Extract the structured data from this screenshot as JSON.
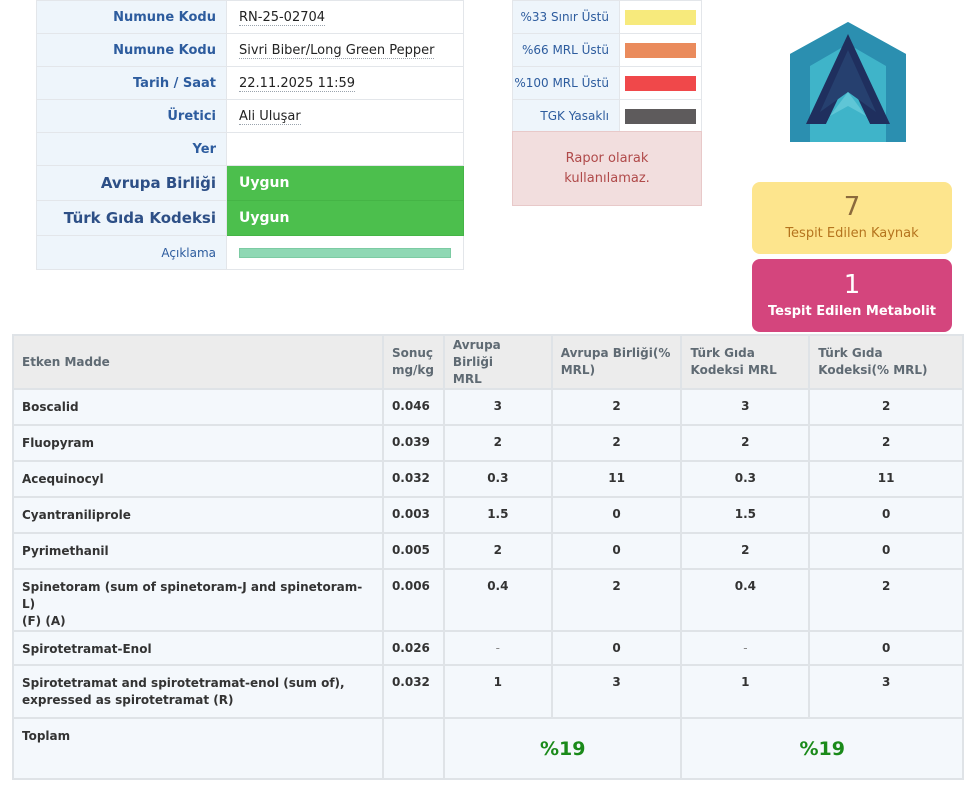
{
  "info": {
    "rows": [
      {
        "label": "Numune Kodu",
        "value": "RN-25-02704"
      },
      {
        "label": "Numune Kodu",
        "value": "Sivri Biber/Long Green Pepper"
      },
      {
        "label": "Tarih / Saat",
        "value": "22.11.2025 11:59"
      },
      {
        "label": "Üretici",
        "value": "Ali Uluşar"
      },
      {
        "label": "Yer",
        "value": ""
      }
    ],
    "eu": {
      "label": "Avrupa Birliği",
      "value": "Uygun"
    },
    "tgk": {
      "label": "Türk Gıda Kodeksi",
      "value": "Uygun"
    },
    "note_label": "Açıklama"
  },
  "legend": {
    "items": [
      {
        "label": "%33 Sınır Üstü",
        "color": "#f7ea7c"
      },
      {
        "label": "%66 MRL Üstü",
        "color": "#ea8b5c"
      },
      {
        "label": "%100 MRL Üstü",
        "color": "#f0484a"
      },
      {
        "label": "TGK Yasaklı",
        "color": "#5e5b5c"
      }
    ],
    "warning_line1": "Rapor olarak",
    "warning_line2": "kullanılamaz."
  },
  "counters": {
    "source_count": "7",
    "source_label": "Tespit Edilen Kaynak",
    "metabolite_count": "1",
    "metabolite_label": "Tespit Edilen Metabolit"
  },
  "results": {
    "headers": {
      "substance": "Etken Madde",
      "result_1": "Sonuç",
      "result_2": "mg/kg",
      "eu_mrl_1": "Avrupa Birliği",
      "eu_mrl_2": "MRL",
      "eu_pct_1": "Avrupa Birliği(%",
      "eu_pct_2": "MRL)",
      "tgk_mrl_1": "Türk Gıda",
      "tgk_mrl_2": "Kodeksi MRL",
      "tgk_pct_1": "Türk Gıda",
      "tgk_pct_2": "Kodeksi(% MRL)"
    },
    "rows": [
      {
        "name": "Boscalid",
        "result": "0.046",
        "eu_mrl": "3",
        "eu_pct": "2",
        "tgk_mrl": "3",
        "tgk_pct": "2"
      },
      {
        "name": "Fluopyram",
        "result": "0.039",
        "eu_mrl": "2",
        "eu_pct": "2",
        "tgk_mrl": "2",
        "tgk_pct": "2"
      },
      {
        "name": "Acequinocyl",
        "result": "0.032",
        "eu_mrl": "0.3",
        "eu_pct": "11",
        "tgk_mrl": "0.3",
        "tgk_pct": "11"
      },
      {
        "name": "Cyantraniliprole",
        "result": "0.003",
        "eu_mrl": "1.5",
        "eu_pct": "0",
        "tgk_mrl": "1.5",
        "tgk_pct": "0"
      },
      {
        "name": "Pyrimethanil",
        "result": "0.005",
        "eu_mrl": "2",
        "eu_pct": "0",
        "tgk_mrl": "2",
        "tgk_pct": "0"
      },
      {
        "name_1": "Spinetoram (sum of spinetoram-J and spinetoram-L)",
        "name_2": "(F) (A)",
        "result": "0.006",
        "eu_mrl": "0.4",
        "eu_pct": "2",
        "tgk_mrl": "0.4",
        "tgk_pct": "2"
      },
      {
        "name": "Spirotetramat-Enol",
        "result": "0.026",
        "eu_mrl": "-",
        "eu_pct": "0",
        "tgk_mrl": "-",
        "tgk_pct": "0"
      },
      {
        "name_1": "Spirotetramat and spirotetramat-enol (sum of),",
        "name_2": "expressed as spirotetramat (R)",
        "result": "0.032",
        "eu_mrl": "1",
        "eu_pct": "3",
        "tgk_mrl": "1",
        "tgk_pct": "3"
      }
    ],
    "total_label": "Toplam",
    "eu_total": "%19",
    "tgk_total": "%19"
  }
}
